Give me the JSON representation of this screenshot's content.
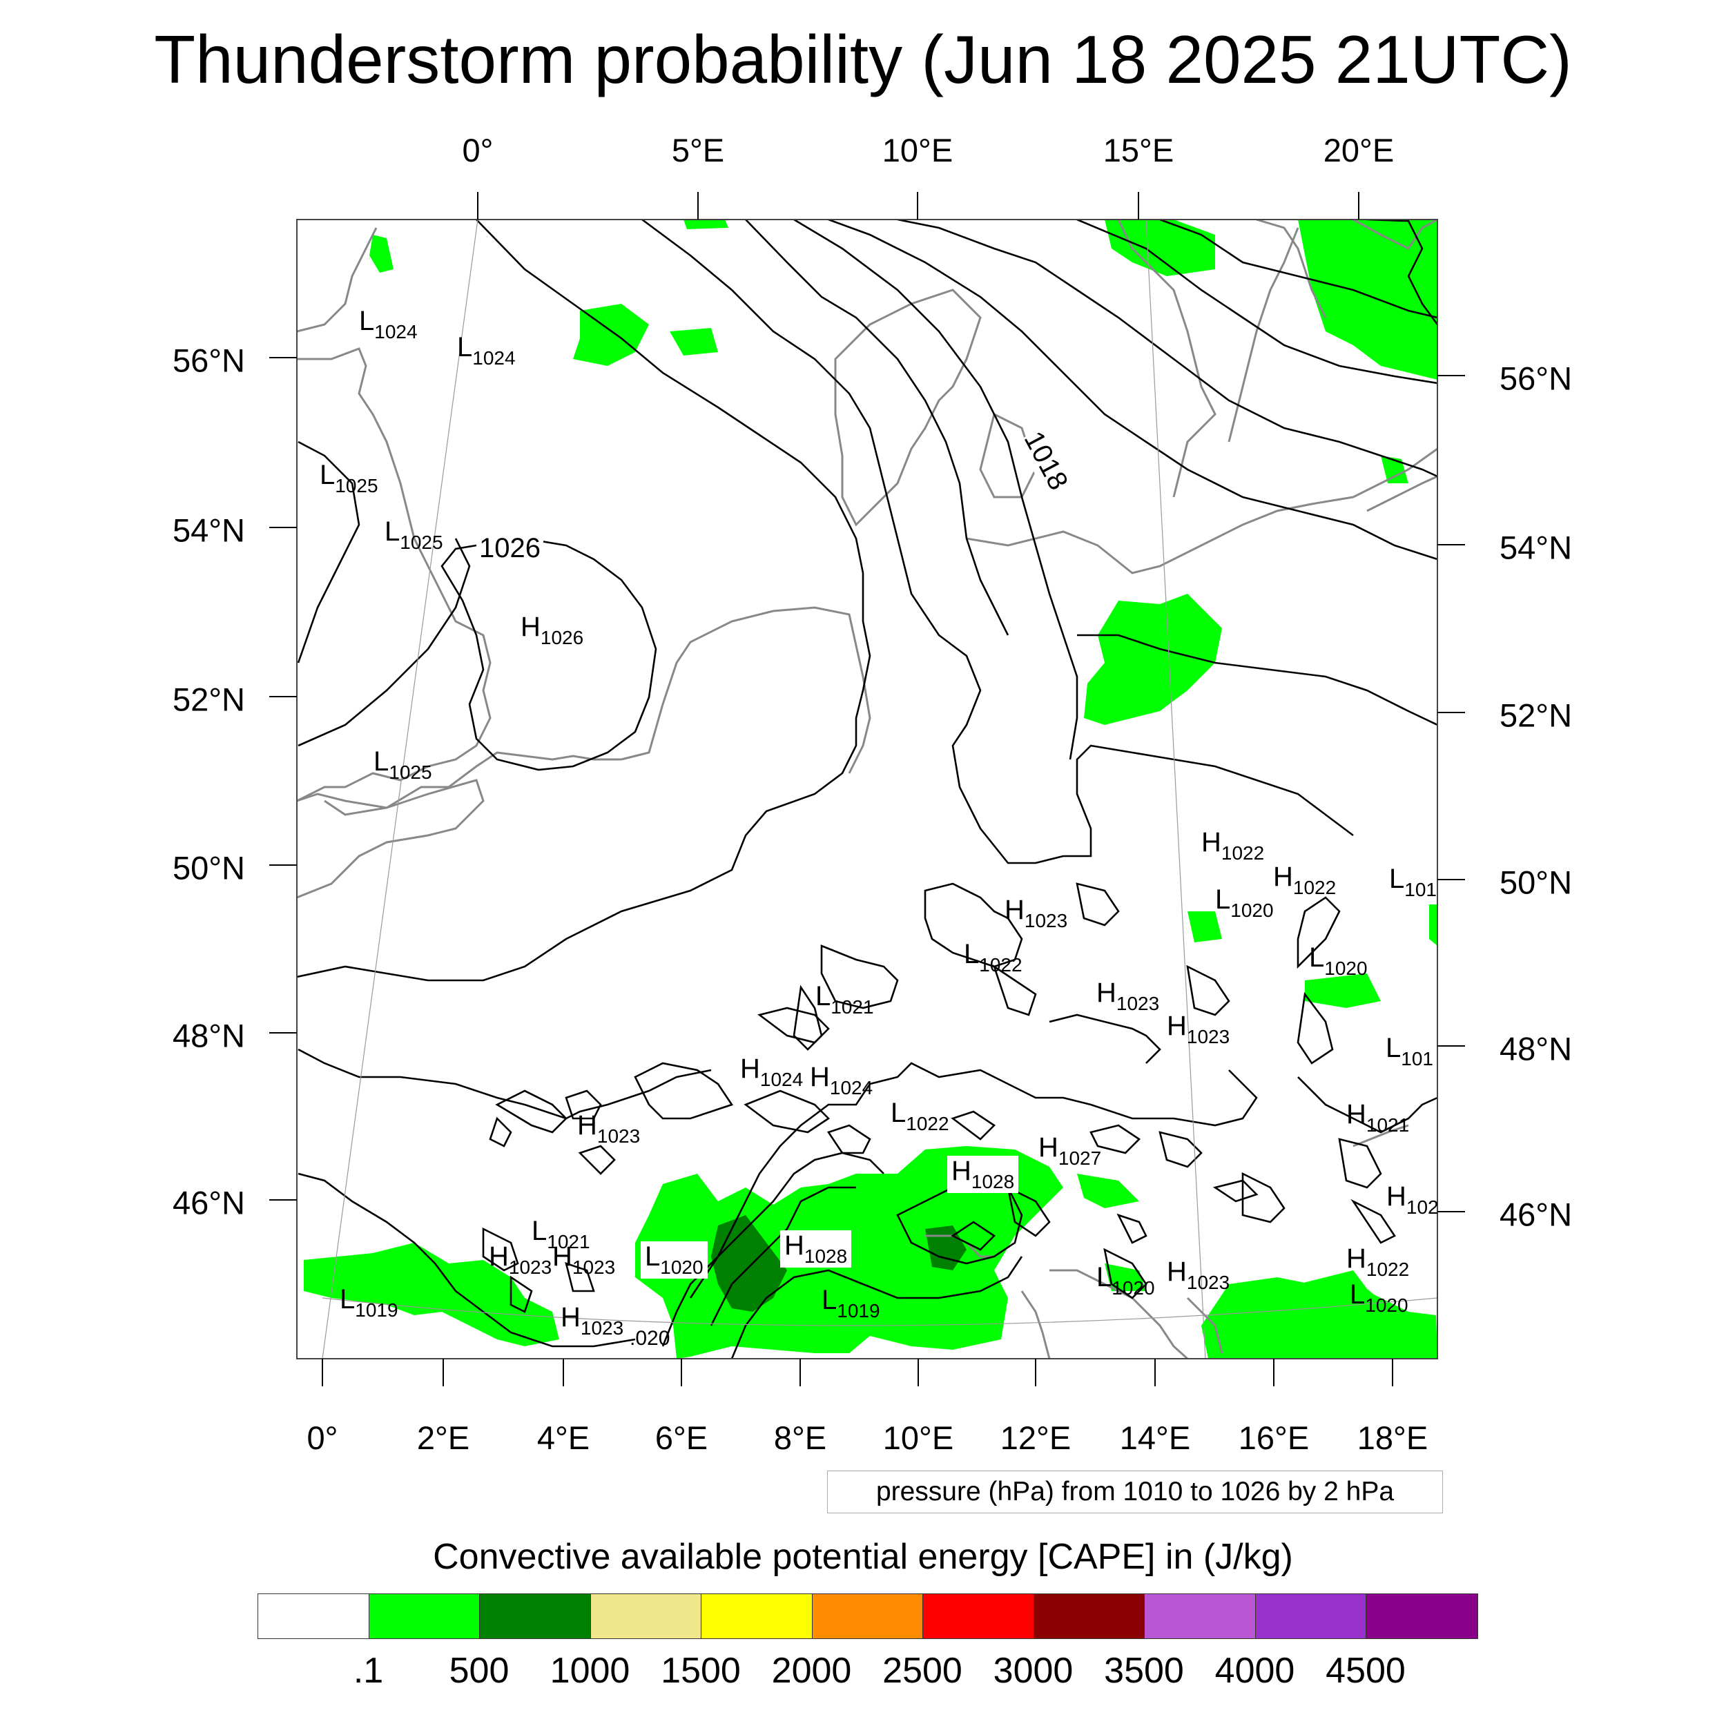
{
  "title": "Thunderstorm probability (Jun 18 2025 21UTC)",
  "top_lon_labels": [
    "0°",
    "5°E",
    "10°E",
    "15°E",
    "20°E"
  ],
  "bottom_lon_labels": [
    "0°",
    "2°E",
    "4°E",
    "6°E",
    "8°E",
    "10°E",
    "12°E",
    "14°E",
    "16°E",
    "18°E"
  ],
  "left_lat_labels": [
    "56°N",
    "54°N",
    "52°N",
    "50°N",
    "48°N",
    "46°N"
  ],
  "right_lat_labels": [
    "56°N",
    "54°N",
    "52°N",
    "50°N",
    "48°N",
    "46°N"
  ],
  "pressure_centers": [
    {
      "t": "L",
      "v": "1024"
    },
    {
      "t": "L",
      "v": "1024"
    },
    {
      "t": "L",
      "v": "1025"
    },
    {
      "t": "L",
      "v": "1025"
    },
    {
      "t": "H",
      "v": "1026"
    },
    {
      "t": "L",
      "v": "1025"
    },
    {
      "t": "H",
      "v": "1022"
    },
    {
      "t": "H",
      "v": "1022"
    },
    {
      "t": "L",
      "v": "101"
    },
    {
      "t": "L",
      "v": "1020"
    },
    {
      "t": "H",
      "v": "1023"
    },
    {
      "t": "L",
      "v": "1022"
    },
    {
      "t": "L",
      "v": "1020"
    },
    {
      "t": "L",
      "v": "1021"
    },
    {
      "t": "H",
      "v": "1023"
    },
    {
      "t": "H",
      "v": "1023"
    },
    {
      "t": "L",
      "v": "101"
    },
    {
      "t": "H",
      "v": "1024"
    },
    {
      "t": "H",
      "v": "1024"
    },
    {
      "t": "L",
      "v": "1022"
    },
    {
      "t": "H",
      "v": "1023"
    },
    {
      "t": "H",
      "v": "1027"
    },
    {
      "t": "H",
      "v": "1028"
    },
    {
      "t": "H",
      "v": "1021"
    },
    {
      "t": "H",
      "v": "102"
    },
    {
      "t": "L",
      "v": "1021"
    },
    {
      "t": "H",
      "v": "1023"
    },
    {
      "t": "H",
      "v": "1023"
    },
    {
      "t": "L",
      "v": "1020"
    },
    {
      "t": "H",
      "v": "1028"
    },
    {
      "t": "L",
      "v": "1019"
    },
    {
      "t": "H",
      "v": "1023"
    },
    {
      "t": "L",
      "v": "1019"
    },
    {
      "t": "L",
      "v": "1020"
    },
    {
      "t": "H",
      "v": "1023"
    },
    {
      "t": "H",
      "v": "1022"
    },
    {
      "t": "L",
      "v": "1020"
    }
  ],
  "contour_labels": [
    "1026",
    "1018",
    ".020"
  ],
  "info_box": "pressure (hPa) from 1010 to 1026 by 2 hPa",
  "colorbar": {
    "title": "Convective available potential energy [CAPE] in (J/kg)",
    "ticks": [
      ".1",
      "500",
      "1000",
      "1500",
      "2000",
      "2500",
      "3000",
      "3500",
      "4000",
      "4500"
    ],
    "colors": [
      "#ffffff",
      "#00ff00",
      "#008000",
      "#f0e68c",
      "#ffff00",
      "#ff8c00",
      "#ff0000",
      "#8b0000",
      "#ba55d3",
      "#9932cc",
      "#8b008b"
    ]
  }
}
